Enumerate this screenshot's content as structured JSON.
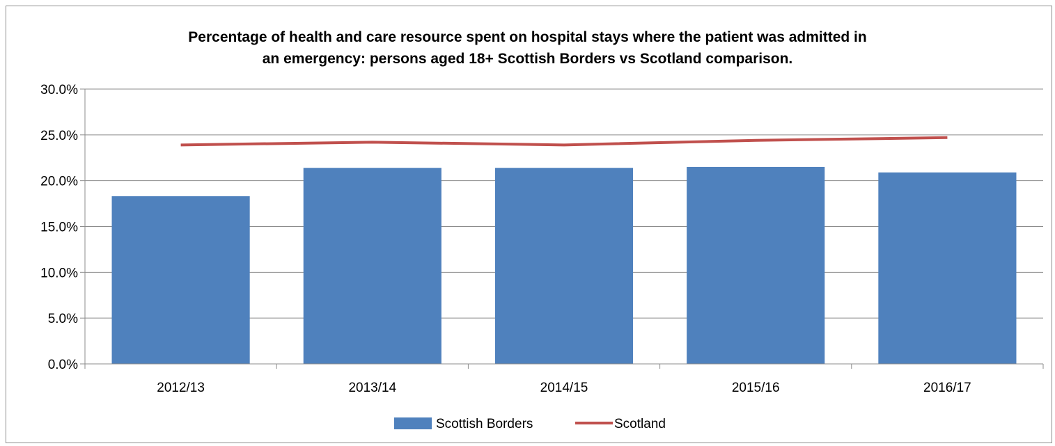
{
  "chart_data": {
    "type": "bar",
    "title_line1": "Percentage of health and care resource spent on hospital stays where the patient was admitted in",
    "title_line2": "an emergency: persons aged 18+ Scottish Borders vs Scotland comparison.",
    "categories": [
      "2012/13",
      "2013/14",
      "2014/15",
      "2015/16",
      "2016/17"
    ],
    "series": [
      {
        "name": "Scottish Borders",
        "type": "bar",
        "color": "#4f81bd",
        "values": [
          18.3,
          21.4,
          21.4,
          21.5,
          20.9
        ]
      },
      {
        "name": "Scotland",
        "type": "line",
        "color": "#c0504d",
        "values": [
          23.9,
          24.2,
          23.9,
          24.4,
          24.7
        ]
      }
    ],
    "yticks": [
      "0.0%",
      "5.0%",
      "10.0%",
      "15.0%",
      "20.0%",
      "25.0%",
      "30.0%"
    ],
    "ylim": [
      0,
      30
    ],
    "grid": true,
    "legend_position": "bottom"
  }
}
